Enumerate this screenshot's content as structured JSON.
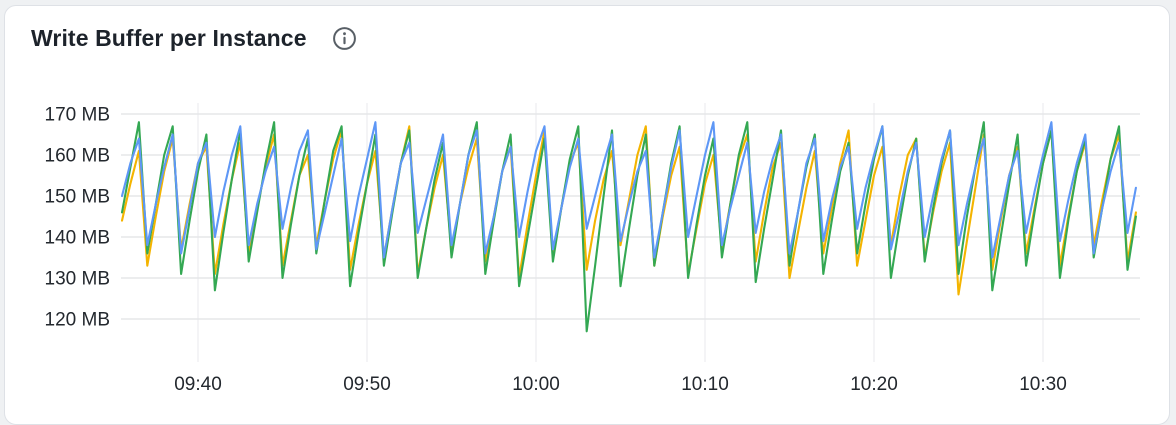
{
  "panel": {
    "title": "Write Buffer per Instance"
  },
  "colors": {
    "series_blue": "#5e97f6",
    "series_yellow": "#f4b400",
    "series_green": "#34a853",
    "grid_horizontal": "#e6e7e9",
    "grid_vertical": "#eff0f2",
    "axis_text": "#23282e",
    "title_text": "#1d232b",
    "info_icon": "#585f66",
    "panel_border": "#dee1e6",
    "panel_bg": "#ffffff",
    "page_bg": "#eff1f3"
  },
  "chart_data": {
    "type": "line",
    "title": "Write Buffer per Instance",
    "unit": "MB",
    "grid": true,
    "legend": "none",
    "ylim": [
      115,
      172
    ],
    "y_ticks": [
      {
        "value": 170,
        "label": "170 MB"
      },
      {
        "value": 160,
        "label": "160 MB"
      },
      {
        "value": 150,
        "label": "150 MB"
      },
      {
        "value": 140,
        "label": "140 MB"
      },
      {
        "value": 130,
        "label": "130 MB"
      },
      {
        "value": 120,
        "label": "120 MB"
      }
    ],
    "x_ticks": [
      {
        "minutes_after_0900": 40,
        "label": "09:40"
      },
      {
        "minutes_after_0900": 50,
        "label": "09:50"
      },
      {
        "minutes_after_0900": 60,
        "label": "10:00"
      },
      {
        "minutes_after_0900": 70,
        "label": "10:10"
      },
      {
        "minutes_after_0900": 80,
        "label": "10:20"
      },
      {
        "minutes_after_0900": 90,
        "label": "10:30"
      }
    ],
    "x_domain": {
      "start_label": "09:35:30",
      "end_label": "10:35:30",
      "step_seconds": 30,
      "minutes_after_0900": [
        35.5,
        95.5
      ]
    },
    "series": [
      {
        "name": "series-yellow",
        "color": "#f4b400",
        "values": [
          144,
          153,
          161,
          133,
          145,
          156,
          164,
          137,
          148,
          158,
          162,
          131,
          143,
          154,
          163,
          136,
          147,
          157,
          165,
          133,
          144,
          155,
          160,
          138,
          149,
          159,
          166,
          132,
          143,
          153,
          161,
          135,
          147,
          158,
          167,
          131,
          142,
          152,
          160,
          137,
          148,
          157,
          164,
          134,
          145,
          156,
          162,
          130,
          143,
          155,
          166,
          136,
          147,
          158,
          163,
          132,
          144,
          154,
          161,
          138,
          149,
          160,
          167,
          133,
          145,
          155,
          162,
          131,
          142,
          153,
          160,
          137,
          148,
          159,
          165,
          134,
          146,
          157,
          163,
          130,
          141,
          152,
          161,
          136,
          147,
          158,
          166,
          133,
          144,
          155,
          162,
          138,
          150,
          160,
          164,
          135,
          146,
          156,
          163,
          126,
          139,
          152,
          165,
          132,
          144,
          155,
          162,
          136,
          147,
          158,
          166,
          133,
          145,
          156,
          163,
          138,
          149,
          159,
          165,
          134,
          146
        ]
      },
      {
        "name": "series-green",
        "color": "#34a853",
        "values": [
          146,
          157,
          168,
          136,
          148,
          160,
          167,
          131,
          144,
          156,
          165,
          127,
          141,
          154,
          166,
          134,
          146,
          158,
          168,
          130,
          143,
          155,
          164,
          136,
          149,
          161,
          167,
          128,
          141,
          153,
          165,
          133,
          146,
          158,
          166,
          130,
          142,
          154,
          163,
          135,
          148,
          160,
          168,
          131,
          144,
          156,
          165,
          128,
          140,
          152,
          164,
          134,
          147,
          159,
          167,
          117,
          133,
          150,
          166,
          128,
          142,
          155,
          165,
          133,
          146,
          158,
          167,
          130,
          143,
          155,
          164,
          135,
          148,
          160,
          168,
          129,
          142,
          154,
          166,
          133,
          146,
          157,
          165,
          131,
          144,
          156,
          163,
          136,
          148,
          159,
          167,
          130,
          143,
          155,
          164,
          134,
          147,
          158,
          166,
          131,
          145,
          157,
          168,
          127,
          140,
          153,
          165,
          133,
          146,
          158,
          166,
          130,
          144,
          156,
          164,
          135,
          147,
          159,
          167,
          132,
          145
        ]
      },
      {
        "name": "series-blue",
        "color": "#5e97f6",
        "values": [
          150,
          158,
          164,
          138,
          148,
          157,
          165,
          136,
          147,
          158,
          163,
          140,
          151,
          160,
          167,
          138,
          148,
          156,
          162,
          142,
          152,
          161,
          166,
          137,
          146,
          155,
          164,
          139,
          150,
          159,
          168,
          135,
          147,
          158,
          163,
          141,
          149,
          157,
          165,
          138,
          148,
          160,
          166,
          136,
          145,
          156,
          162,
          140,
          151,
          161,
          167,
          137,
          147,
          157,
          164,
          142,
          150,
          158,
          165,
          139,
          148,
          156,
          161,
          135,
          146,
          157,
          166,
          140,
          150,
          160,
          168,
          138,
          147,
          155,
          163,
          141,
          151,
          159,
          165,
          136,
          146,
          158,
          164,
          139,
          149,
          157,
          162,
          142,
          152,
          160,
          167,
          137,
          146,
          156,
          163,
          140,
          150,
          159,
          166,
          138,
          148,
          157,
          164,
          135,
          145,
          155,
          161,
          141,
          151,
          160,
          168,
          139,
          149,
          158,
          165,
          136,
          147,
          156,
          163,
          141,
          152
        ]
      }
    ]
  }
}
